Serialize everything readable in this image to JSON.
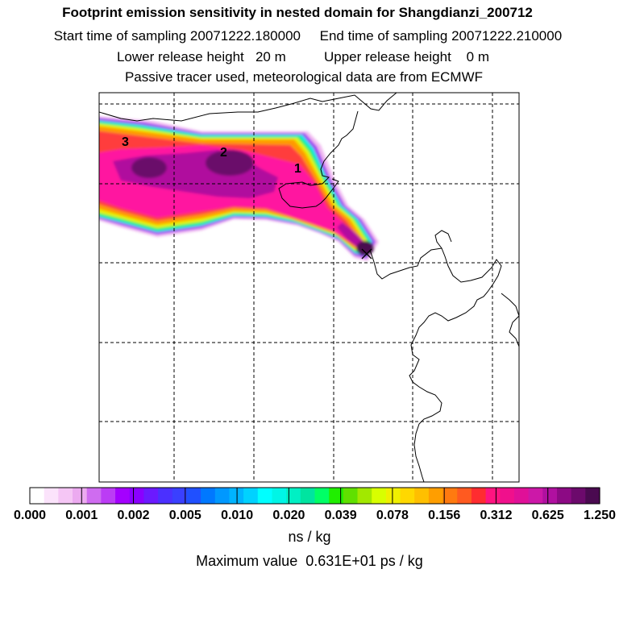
{
  "header": {
    "title": "Footprint emission sensitivity in nested domain for Shangdianzi_200712",
    "line2": "Start time of sampling 20071222.180000     End time of sampling 20071222.210000",
    "line3": "Lower release height   20 m          Upper release height    0 m",
    "line4": "Passive tracer used, meteorological data are from ECMWF"
  },
  "chart_data": {
    "type": "heatmap",
    "title": "Footprint emission sensitivity in nested domain for Shangdianzi_200712",
    "units": "ns / kg",
    "max_value_text": "Maximum value  0.631E+01 ps / kg",
    "legend_ticks": [
      "0.000",
      "0.001",
      "0.002",
      "0.005",
      "0.010",
      "0.020",
      "0.039",
      "0.078",
      "0.156",
      "0.312",
      "0.625",
      "1.250"
    ],
    "legend_colors": [
      "#ffffff",
      "#fbe3fb",
      "#f5c6f5",
      "#ecaaf0",
      "#cf6cf0",
      "#bb3cf5",
      "#a400ff",
      "#8a00ff",
      "#6b1aff",
      "#4b30ff",
      "#3a40ff",
      "#2050ff",
      "#0078ff",
      "#0098ff",
      "#00b4ff",
      "#00d2ff",
      "#00ffff",
      "#00f5e6",
      "#00f0c4",
      "#00e4a0",
      "#00ff66",
      "#20ee00",
      "#60e000",
      "#a2e800",
      "#d8ff00",
      "#f0f000",
      "#ffd800",
      "#ffbf00",
      "#ff9e00",
      "#ff7a10",
      "#ff5a20",
      "#ff2c30",
      "#ff1480",
      "#f0108c",
      "#e01098",
      "#cc18a8",
      "#b010a0",
      "#8c0a84",
      "#6c0a6c",
      "#4a0a50"
    ],
    "plume_labels": [
      "1",
      "2",
      "3"
    ],
    "receptor": "Shangdianzi"
  }
}
